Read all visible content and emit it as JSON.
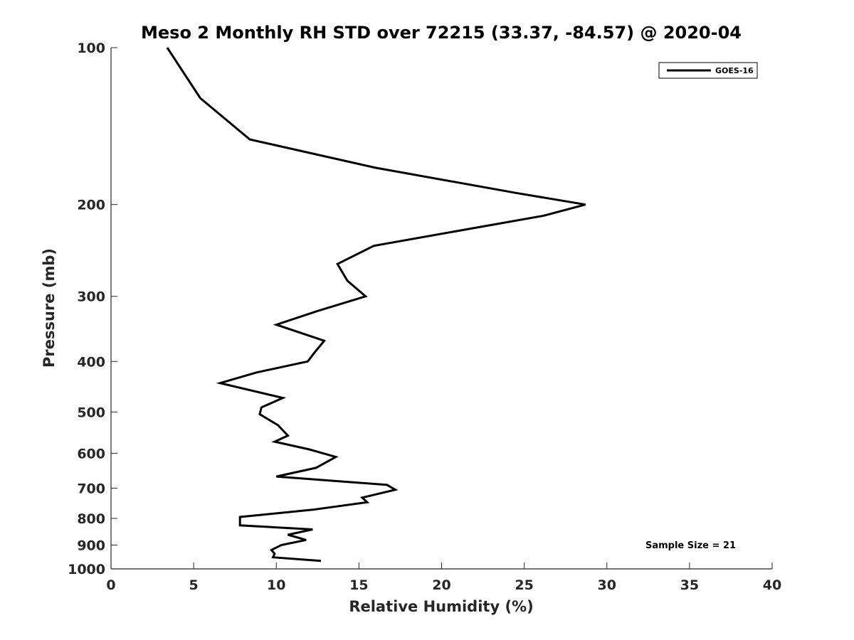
{
  "chart_data": {
    "type": "line",
    "title": "Meso 2 Monthly RH STD over 72215 (33.37, -84.57) @ 2020-04",
    "xlabel": "Relative Humidity (%)",
    "ylabel": "Pressure (mb)",
    "xlim": [
      0,
      40
    ],
    "ylim": [
      100,
      1000
    ],
    "y_scale": "log",
    "y_reversed": true,
    "grid": false,
    "legend_position": "top-right",
    "x_ticks": [
      0,
      5,
      10,
      15,
      20,
      25,
      30,
      35,
      40
    ],
    "x_tick_labels": [
      "0",
      "5",
      "10",
      "15",
      "20",
      "25",
      "30",
      "35",
      "40"
    ],
    "y_ticks": [
      100,
      200,
      300,
      400,
      500,
      600,
      700,
      800,
      900,
      1000
    ],
    "y_tick_labels": [
      "100",
      "200",
      "300",
      "400",
      "500",
      "600",
      "700",
      "800",
      "900",
      "1000"
    ],
    "series": [
      {
        "name": "GOES-16",
        "color": "#000000",
        "points": [
          [
            3.4,
            100
          ],
          [
            5.4,
            125
          ],
          [
            8.4,
            150
          ],
          [
            16.0,
            170
          ],
          [
            24.5,
            190
          ],
          [
            28.7,
            200
          ],
          [
            26.2,
            210
          ],
          [
            15.9,
            240
          ],
          [
            13.7,
            260
          ],
          [
            14.3,
            280
          ],
          [
            15.4,
            300
          ],
          [
            12.5,
            320
          ],
          [
            10.0,
            340
          ],
          [
            12.9,
            365
          ],
          [
            12.3,
            385
          ],
          [
            11.9,
            400
          ],
          [
            8.8,
            420
          ],
          [
            6.6,
            440
          ],
          [
            10.4,
            470
          ],
          [
            9.1,
            490
          ],
          [
            9.0,
            505
          ],
          [
            10.1,
            530
          ],
          [
            10.7,
            555
          ],
          [
            9.9,
            570
          ],
          [
            12.0,
            590
          ],
          [
            13.6,
            610
          ],
          [
            12.4,
            640
          ],
          [
            10.0,
            665
          ],
          [
            16.7,
            690
          ],
          [
            17.2,
            705
          ],
          [
            15.2,
            730
          ],
          [
            15.5,
            745
          ],
          [
            12.2,
            770
          ],
          [
            7.8,
            795
          ],
          [
            7.8,
            825
          ],
          [
            12.2,
            840
          ],
          [
            10.7,
            860
          ],
          [
            11.8,
            880
          ],
          [
            10.3,
            900
          ],
          [
            9.7,
            920
          ],
          [
            9.9,
            935
          ],
          [
            9.8,
            950
          ],
          [
            12.7,
            965
          ]
        ]
      }
    ],
    "annotations": [
      {
        "text": "Sample Size = 21"
      }
    ]
  }
}
